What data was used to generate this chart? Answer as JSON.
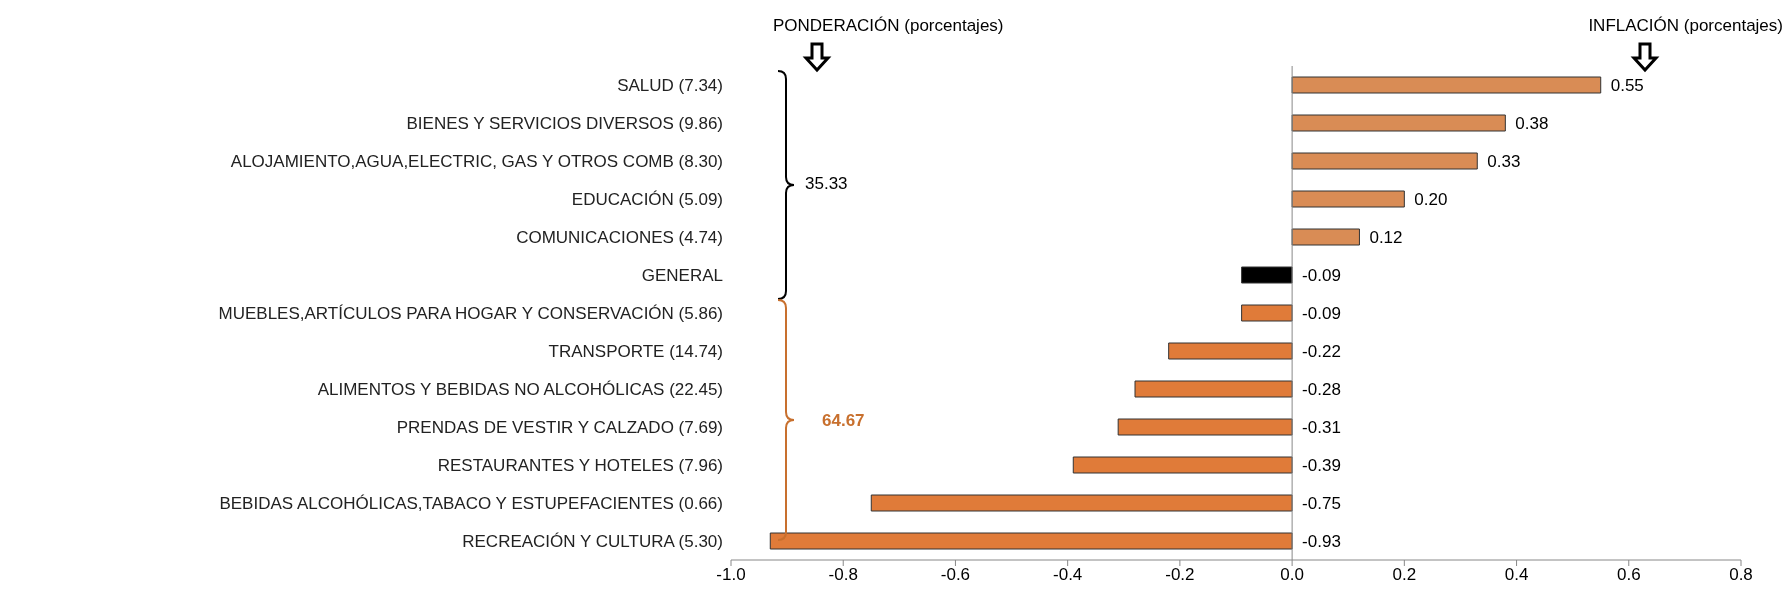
{
  "chart_data": {
    "type": "bar",
    "orientation": "horizontal",
    "annotations": [
      "PONDERACIÓN (porcentajes)",
      "INFLACIÓN (porcentajes)",
      "35.33",
      "64.67"
    ],
    "categories": [
      "SALUD (7.34)",
      "BIENES Y SERVICIOS DIVERSOS (9.86)",
      "ALOJAMIENTO,AGUA,ELECTRIC, GAS Y OTROS COMB (8.30)",
      "EDUCACIÓN (5.09)",
      "COMUNICACIONES (4.74)",
      "GENERAL",
      "MUEBLES,ARTÍCULOS PARA HOGAR Y CONSERVACIÓN (5.86)",
      "TRANSPORTE (14.74)",
      "ALIMENTOS Y BEBIDAS NO ALCOHÓLICAS (22.45)",
      "PRENDAS DE VESTIR Y CALZADO (7.69)",
      "RESTAURANTES Y HOTELES (7.96)",
      "BEBIDAS ALCOHÓLICAS,TABACO Y ESTUPEFACIENTES (0.66)",
      "RECREACIÓN Y CULTURA (5.30)"
    ],
    "values": [
      0.55,
      0.38,
      0.33,
      0.2,
      0.12,
      -0.09,
      -0.09,
      -0.22,
      -0.28,
      -0.31,
      -0.39,
      -0.75,
      -0.93
    ],
    "value_labels": [
      "0.55",
      "0.38",
      "0.33",
      "0.20",
      "0.12",
      "-0.09",
      "-0.09",
      "-0.22",
      "-0.28",
      "-0.31",
      "-0.39",
      "-0.75",
      "-0.93"
    ],
    "colors": [
      "#d98c55",
      "#d98c55",
      "#d98c55",
      "#d98c55",
      "#d98c55",
      "#000000",
      "#e07b39",
      "#e07b39",
      "#e07b39",
      "#e07b39",
      "#e07b39",
      "#e07b39",
      "#e07b39"
    ],
    "xlim": [
      -1,
      0.8
    ],
    "xticks": [
      {
        "value": -1,
        "label": "-1.0"
      },
      {
        "value": -0.8,
        "label": "-0.8"
      },
      {
        "value": -0.6,
        "label": "-0.6"
      },
      {
        "value": -0.4,
        "label": "-0.4"
      },
      {
        "value": -0.2,
        "label": "-0.2"
      },
      {
        "value": 0,
        "label": "0.0"
      },
      {
        "value": 0.2,
        "label": "0.2"
      },
      {
        "value": 0.4,
        "label": "0.4"
      },
      {
        "value": 0.6,
        "label": "0.6"
      },
      {
        "value": 0.8,
        "label": "0.8"
      }
    ],
    "legend": false
  }
}
